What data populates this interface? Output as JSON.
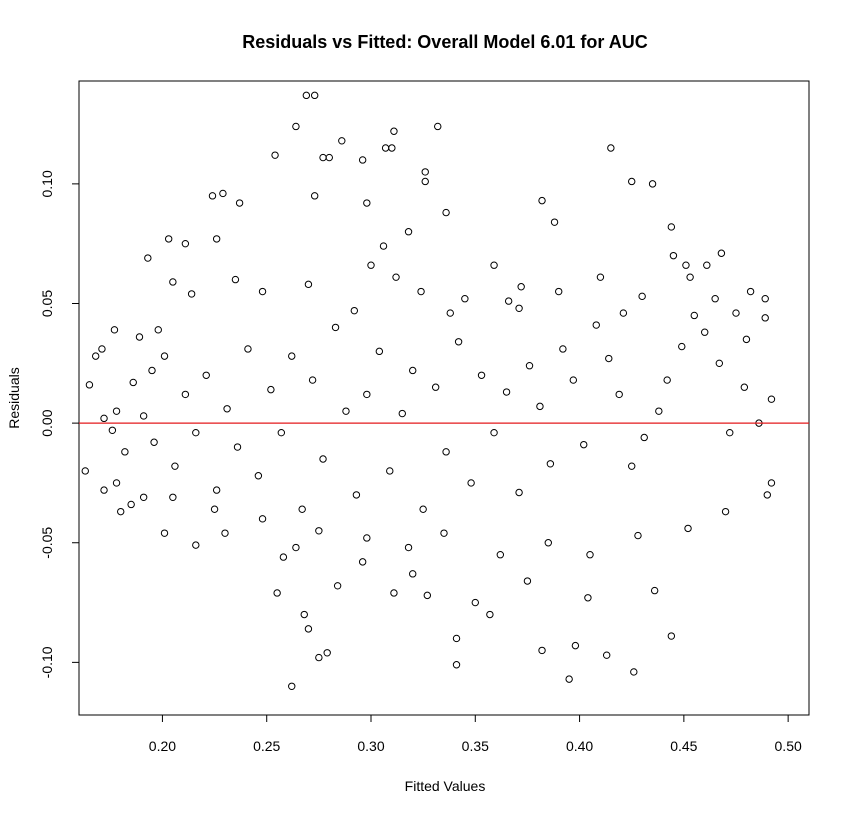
{
  "chart_data": {
    "type": "scatter",
    "title": "Residuals vs Fitted: Overall Model 6.01 for AUC",
    "xlabel": "Fitted Values",
    "ylabel": "Residuals",
    "xlim": [
      0.16,
      0.51
    ],
    "ylim": [
      -0.122,
      0.143
    ],
    "x_ticks": [
      0.2,
      0.25,
      0.3,
      0.35,
      0.4,
      0.45,
      0.5
    ],
    "x_tick_labels": [
      "0.20",
      "0.25",
      "0.30",
      "0.35",
      "0.40",
      "0.45",
      "0.50"
    ],
    "y_ticks": [
      -0.1,
      -0.05,
      0.0,
      0.05,
      0.1
    ],
    "y_tick_labels": [
      "-0.10",
      "-0.05",
      "0.00",
      "0.05",
      "0.10"
    ],
    "reference_line": {
      "y": 0,
      "color": "#e41a1c"
    },
    "point_color": "#000000",
    "grid": false,
    "legend": "none",
    "series": [
      {
        "marker": "open-circle",
        "points": [
          [
            0.269,
            0.137
          ],
          [
            0.273,
            0.137
          ],
          [
            0.264,
            0.124
          ],
          [
            0.332,
            0.124
          ],
          [
            0.311,
            0.122
          ],
          [
            0.286,
            0.118
          ],
          [
            0.31,
            0.115
          ],
          [
            0.307,
            0.115
          ],
          [
            0.254,
            0.112
          ],
          [
            0.277,
            0.111
          ],
          [
            0.28,
            0.111
          ],
          [
            0.296,
            0.11
          ],
          [
            0.415,
            0.115
          ],
          [
            0.326,
            0.105
          ],
          [
            0.326,
            0.101
          ],
          [
            0.425,
            0.101
          ],
          [
            0.435,
            0.1
          ],
          [
            0.229,
            0.096
          ],
          [
            0.273,
            0.095
          ],
          [
            0.382,
            0.093
          ],
          [
            0.237,
            0.092
          ],
          [
            0.298,
            0.092
          ],
          [
            0.224,
            0.095
          ],
          [
            0.444,
            0.082
          ],
          [
            0.388,
            0.084
          ],
          [
            0.336,
            0.088
          ],
          [
            0.468,
            0.071
          ],
          [
            0.193,
            0.069
          ],
          [
            0.203,
            0.077
          ],
          [
            0.211,
            0.075
          ],
          [
            0.226,
            0.077
          ],
          [
            0.445,
            0.07
          ],
          [
            0.451,
            0.066
          ],
          [
            0.235,
            0.06
          ],
          [
            0.214,
            0.054
          ],
          [
            0.205,
            0.059
          ],
          [
            0.372,
            0.057
          ],
          [
            0.359,
            0.066
          ],
          [
            0.461,
            0.066
          ],
          [
            0.482,
            0.055
          ],
          [
            0.489,
            0.052
          ],
          [
            0.489,
            0.044
          ],
          [
            0.177,
            0.039
          ],
          [
            0.189,
            0.036
          ],
          [
            0.198,
            0.039
          ],
          [
            0.168,
            0.028
          ],
          [
            0.171,
            0.031
          ],
          [
            0.178,
            0.005
          ],
          [
            0.165,
            0.016
          ],
          [
            0.163,
            -0.02
          ],
          [
            0.172,
            -0.028
          ],
          [
            0.18,
            -0.037
          ],
          [
            0.191,
            -0.031
          ],
          [
            0.201,
            -0.046
          ],
          [
            0.216,
            -0.051
          ],
          [
            0.23,
            -0.046
          ],
          [
            0.255,
            -0.071
          ],
          [
            0.258,
            -0.056
          ],
          [
            0.264,
            -0.052
          ],
          [
            0.268,
            -0.08
          ],
          [
            0.27,
            -0.086
          ],
          [
            0.275,
            -0.098
          ],
          [
            0.262,
            -0.11
          ],
          [
            0.279,
            -0.096
          ],
          [
            0.284,
            -0.068
          ],
          [
            0.296,
            -0.058
          ],
          [
            0.311,
            -0.071
          ],
          [
            0.327,
            -0.072
          ],
          [
            0.341,
            -0.09
          ],
          [
            0.341,
            -0.101
          ],
          [
            0.357,
            -0.08
          ],
          [
            0.382,
            -0.095
          ],
          [
            0.395,
            -0.107
          ],
          [
            0.398,
            -0.093
          ],
          [
            0.413,
            -0.097
          ],
          [
            0.426,
            -0.104
          ],
          [
            0.436,
            -0.07
          ],
          [
            0.444,
            -0.089
          ],
          [
            0.404,
            -0.073
          ],
          [
            0.375,
            -0.066
          ],
          [
            0.35,
            -0.075
          ],
          [
            0.32,
            -0.063
          ],
          [
            0.49,
            -0.03
          ],
          [
            0.492,
            -0.025
          ],
          [
            0.492,
            0.01
          ],
          [
            0.486,
            0.0
          ],
          [
            0.479,
            0.015
          ],
          [
            0.472,
            -0.004
          ],
          [
            0.467,
            0.025
          ],
          [
            0.46,
            0.038
          ],
          [
            0.455,
            0.045
          ],
          [
            0.449,
            0.032
          ],
          [
            0.442,
            0.018
          ],
          [
            0.438,
            0.005
          ],
          [
            0.431,
            -0.006
          ],
          [
            0.425,
            -0.018
          ],
          [
            0.419,
            0.012
          ],
          [
            0.414,
            0.027
          ],
          [
            0.408,
            0.041
          ],
          [
            0.402,
            -0.009
          ],
          [
            0.397,
            0.018
          ],
          [
            0.392,
            0.031
          ],
          [
            0.386,
            -0.017
          ],
          [
            0.381,
            0.007
          ],
          [
            0.376,
            0.024
          ],
          [
            0.371,
            -0.029
          ],
          [
            0.365,
            0.013
          ],
          [
            0.359,
            -0.004
          ],
          [
            0.353,
            0.02
          ],
          [
            0.348,
            -0.025
          ],
          [
            0.342,
            0.034
          ],
          [
            0.336,
            -0.012
          ],
          [
            0.331,
            0.015
          ],
          [
            0.325,
            -0.036
          ],
          [
            0.32,
            0.022
          ],
          [
            0.315,
            0.004
          ],
          [
            0.309,
            -0.02
          ],
          [
            0.304,
            0.03
          ],
          [
            0.298,
            0.012
          ],
          [
            0.293,
            -0.03
          ],
          [
            0.288,
            0.005
          ],
          [
            0.283,
            0.04
          ],
          [
            0.277,
            -0.015
          ],
          [
            0.272,
            0.018
          ],
          [
            0.267,
            -0.036
          ],
          [
            0.262,
            0.028
          ],
          [
            0.257,
            -0.004
          ],
          [
            0.252,
            0.014
          ],
          [
            0.246,
            -0.022
          ],
          [
            0.241,
            0.031
          ],
          [
            0.236,
            -0.01
          ],
          [
            0.231,
            0.006
          ],
          [
            0.226,
            -0.028
          ],
          [
            0.221,
            0.02
          ],
          [
            0.216,
            -0.004
          ],
          [
            0.211,
            0.012
          ],
          [
            0.206,
            -0.018
          ],
          [
            0.201,
            0.028
          ],
          [
            0.196,
            -0.008
          ],
          [
            0.191,
            0.003
          ],
          [
            0.186,
            0.017
          ],
          [
            0.182,
            -0.012
          ],
          [
            0.176,
            -0.003
          ],
          [
            0.172,
            0.002
          ],
          [
            0.312,
            0.061
          ],
          [
            0.306,
            0.074
          ],
          [
            0.3,
            0.066
          ],
          [
            0.318,
            0.08
          ],
          [
            0.324,
            0.055
          ],
          [
            0.345,
            0.052
          ],
          [
            0.366,
            0.051
          ],
          [
            0.39,
            0.055
          ],
          [
            0.41,
            0.061
          ],
          [
            0.43,
            0.053
          ],
          [
            0.453,
            0.061
          ],
          [
            0.248,
            0.055
          ],
          [
            0.27,
            0.058
          ],
          [
            0.292,
            0.047
          ],
          [
            0.338,
            0.046
          ],
          [
            0.371,
            0.048
          ],
          [
            0.421,
            0.046
          ],
          [
            0.298,
            -0.048
          ],
          [
            0.318,
            -0.052
          ],
          [
            0.335,
            -0.046
          ],
          [
            0.362,
            -0.055
          ],
          [
            0.385,
            -0.05
          ],
          [
            0.405,
            -0.055
          ],
          [
            0.428,
            -0.047
          ],
          [
            0.452,
            -0.044
          ],
          [
            0.47,
            -0.037
          ],
          [
            0.248,
            -0.04
          ],
          [
            0.275,
            -0.045
          ],
          [
            0.225,
            -0.036
          ],
          [
            0.205,
            -0.031
          ],
          [
            0.465,
            0.052
          ],
          [
            0.475,
            0.046
          ],
          [
            0.48,
            0.035
          ],
          [
            0.178,
            -0.025
          ],
          [
            0.185,
            -0.034
          ],
          [
            0.195,
            0.022
          ]
        ]
      }
    ]
  }
}
